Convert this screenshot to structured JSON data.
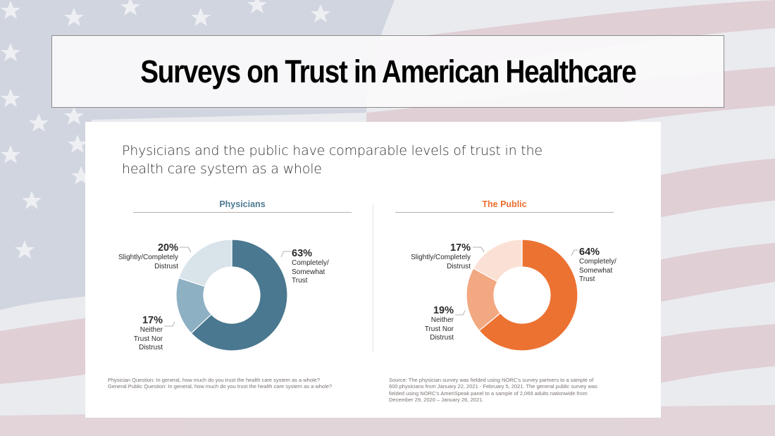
{
  "slide": {
    "title": "Surveys on Trust in American Healthcare",
    "background": "american-flag-faded"
  },
  "card": {
    "headline": "Physicians and the public have comparable levels of trust in the health care system as a whole",
    "footnote_left": [
      "Physician Question: In general, how much do you trust the health care system as a whole?",
      "General Public Question: In general, how much do you trust the health care system as a whole?"
    ],
    "footnote_right": [
      "Source: The physician survey was fielded using NORC’s survey partners to a sample of",
      "600 physicians from January 22, 2021 - February 5, 2021. The general public survey was",
      "fielded using NORC’s AmeriSpeak panel to a sample of 2,069 adults nationwide from",
      "December 29, 2020 – January 26, 2021."
    ]
  },
  "chart_data": [
    {
      "type": "pie",
      "subtype": "donut",
      "title": "Physicians",
      "title_color": "#4d7a91",
      "categories": [
        "Completely/ Somewhat Trust",
        "Neither Trust Nor Distrust",
        "Slightly/Completely Distrust"
      ],
      "values": [
        63,
        17,
        20
      ],
      "labels": [
        "63%",
        "17%",
        "20%"
      ],
      "label_lines": [
        [
          "Completely/",
          "Somewhat",
          "Trust"
        ],
        [
          "Neither",
          "Trust Nor",
          "Distrust"
        ],
        [
          "Slightly/Completely",
          "Distrust"
        ]
      ],
      "colors": [
        "#4a7890",
        "#8db0c3",
        "#d9e3ea"
      ],
      "unit": "%"
    },
    {
      "type": "pie",
      "subtype": "donut",
      "title": "The Public",
      "title_color": "#ec6f30",
      "categories": [
        "Completely/ Somewhat Trust",
        "Neither Trust Nor Distrust",
        "Slightly/Completely Distrust"
      ],
      "values": [
        64,
        19,
        17
      ],
      "labels": [
        "64%",
        "19%",
        "17%"
      ],
      "label_lines": [
        [
          "Completely/",
          "Somewhat",
          "Trust"
        ],
        [
          "Neither",
          "Trust Nor",
          "Distrust"
        ],
        [
          "Slightly/Completely",
          "Distrust"
        ]
      ],
      "colors": [
        "#ec7232",
        "#f2a881",
        "#fbe1d5"
      ],
      "unit": "%"
    }
  ]
}
